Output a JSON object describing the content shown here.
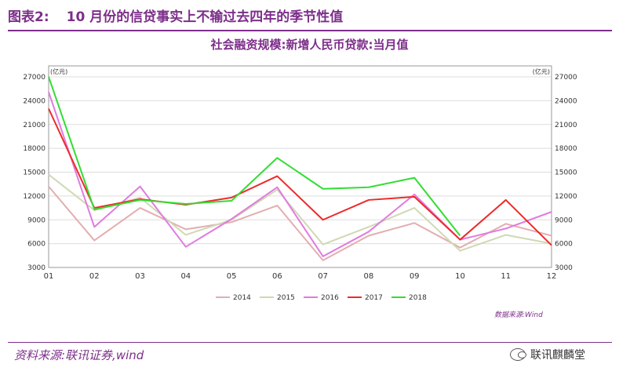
{
  "header": {
    "num": "图表2:",
    "title": "10 月份的信贷事实上不输过去四年的季节性值"
  },
  "chart_title": "社会融资规模:新增人民币贷款:当月值",
  "source_note": "数据来源:Wind",
  "footer": {
    "source": "资料来源:联讯证券,wind"
  },
  "watermark": {
    "text": "联讯麒麟堂",
    "icon": "wechat-icon"
  },
  "chart_data": {
    "type": "line",
    "title": "社会融资规模:新增人民币贷款:当月值",
    "categories": [
      "01",
      "02",
      "03",
      "04",
      "05",
      "06",
      "07",
      "08",
      "09",
      "10",
      "11",
      "12"
    ],
    "ylim": [
      3000,
      27000
    ],
    "yticks": [
      3000,
      6000,
      9000,
      12000,
      15000,
      18000,
      21000,
      24000,
      27000
    ],
    "y_unit_left": "(亿元)",
    "y_unit_right": "(亿元)",
    "grid": true,
    "legend_position": "bottom",
    "series": [
      {
        "name": "2014",
        "color": "#e3aeb0",
        "values": [
          13200,
          6400,
          10500,
          7800,
          8700,
          10800,
          3900,
          7000,
          8600,
          5500,
          8500,
          7000
        ]
      },
      {
        "name": "2015",
        "color": "#cfd9b3",
        "values": [
          14700,
          10200,
          11800,
          7100,
          9000,
          12800,
          5900,
          8100,
          10500,
          5100,
          7100,
          6000
        ]
      },
      {
        "name": "2016",
        "color": "#e07be0",
        "values": [
          25100,
          8100,
          13200,
          5600,
          9100,
          13100,
          4400,
          7500,
          12200,
          6500,
          7900,
          10000
        ]
      },
      {
        "name": "2017",
        "color": "#ee2a2a",
        "values": [
          23000,
          10500,
          11600,
          10900,
          11800,
          14500,
          9000,
          11500,
          11900,
          6500,
          11500,
          5800
        ]
      },
      {
        "name": "2018",
        "color": "#33dd33",
        "values": [
          27000,
          10300,
          11500,
          11000,
          11400,
          16800,
          12900,
          13100,
          14300,
          7000,
          null,
          null
        ]
      }
    ]
  }
}
